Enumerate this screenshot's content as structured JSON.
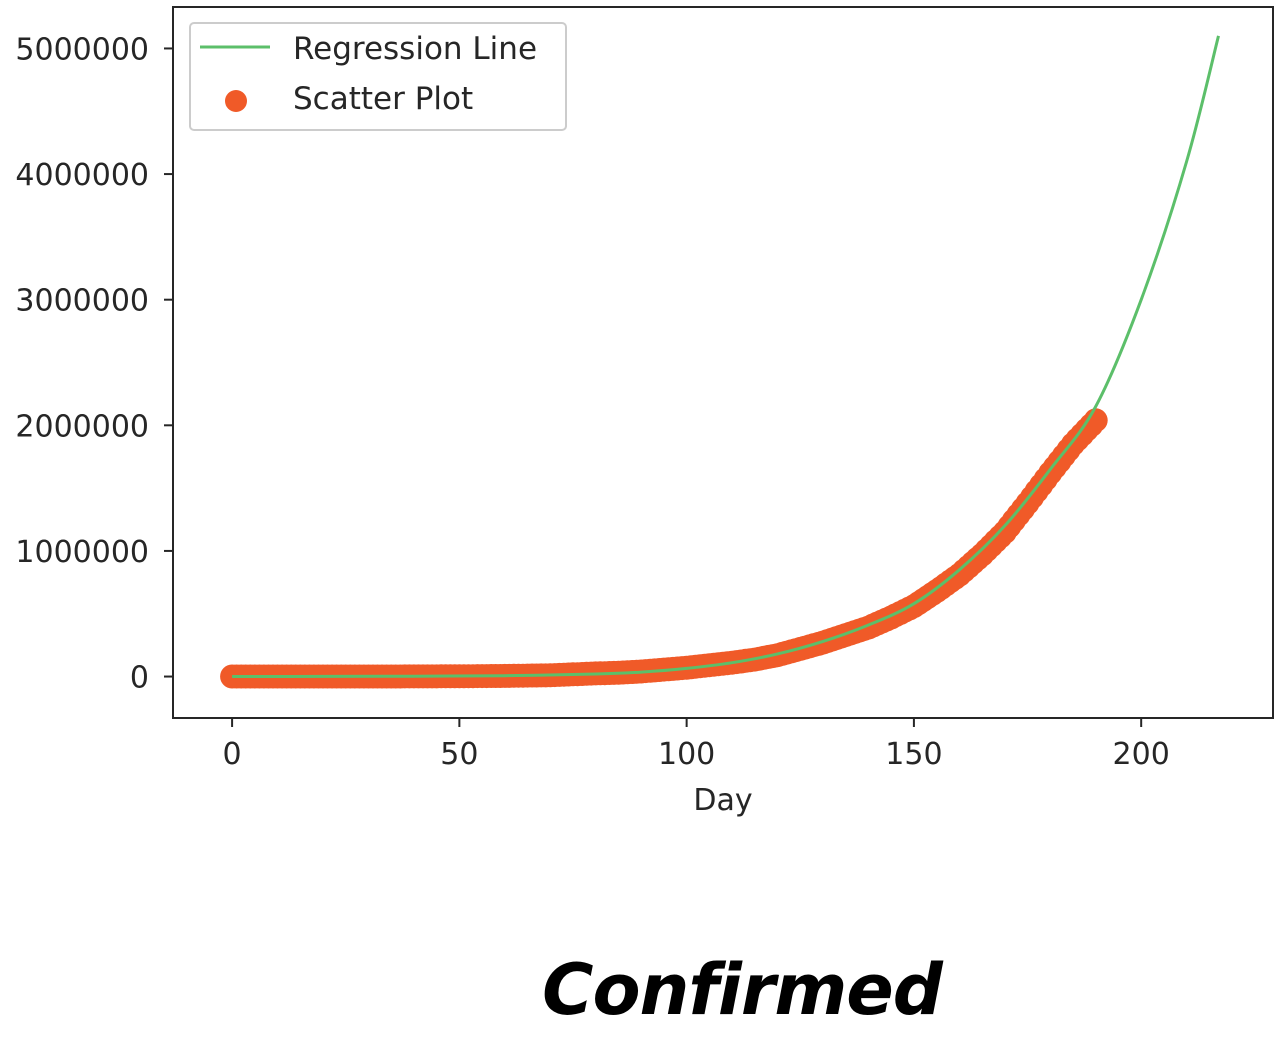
{
  "caption": "Confirmed",
  "colors": {
    "line": "#5cbf6a",
    "scatter": "#f05a28",
    "axis": "#262626",
    "legend_border": "#cccccc"
  },
  "chart_data": {
    "type": "scatter",
    "xlabel": "Day",
    "ylabel": "",
    "xlim": [
      -13,
      229
    ],
    "ylim": [
      -330000,
      5330000
    ],
    "xticks": [
      0,
      50,
      100,
      150,
      200
    ],
    "xtick_labels": [
      "0",
      "50",
      "100",
      "150",
      "200"
    ],
    "yticks": [
      0,
      1000000,
      2000000,
      3000000,
      4000000,
      5000000
    ],
    "ytick_labels": [
      "0",
      "1000000",
      "2000000",
      "3000000",
      "4000000",
      "5000000"
    ],
    "grid": false,
    "legend": {
      "placement": "top-left",
      "entries": [
        {
          "label": "Regression Line",
          "marker": "line"
        },
        {
          "label": "Scatter Plot",
          "marker": "dot"
        }
      ]
    },
    "series": [
      {
        "name": "Regression Line",
        "kind": "line",
        "x": [
          0,
          20,
          40,
          60,
          80,
          90,
          100,
          110,
          120,
          130,
          140,
          150,
          160,
          170,
          180,
          190,
          200,
          210,
          217
        ],
        "y": [
          0,
          1000,
          3000,
          7000,
          20000,
          35000,
          65000,
          110000,
          180000,
          280000,
          410000,
          580000,
          850000,
          1200000,
          1650000,
          2150000,
          3000000,
          4100000,
          5100000
        ]
      },
      {
        "name": "Scatter Plot",
        "kind": "scatter",
        "x": [
          0,
          10,
          20,
          30,
          40,
          50,
          60,
          70,
          80,
          85,
          90,
          95,
          100,
          105,
          110,
          115,
          120,
          125,
          130,
          135,
          140,
          145,
          150,
          155,
          160,
          165,
          170,
          175,
          180,
          185,
          190
        ],
        "y": [
          0,
          0,
          0,
          0,
          1000,
          2000,
          5000,
          10000,
          25000,
          30000,
          40000,
          55000,
          70000,
          90000,
          110000,
          135000,
          170000,
          220000,
          270000,
          330000,
          390000,
          470000,
          560000,
          680000,
          810000,
          970000,
          1150000,
          1380000,
          1620000,
          1850000,
          2040000
        ]
      }
    ]
  }
}
